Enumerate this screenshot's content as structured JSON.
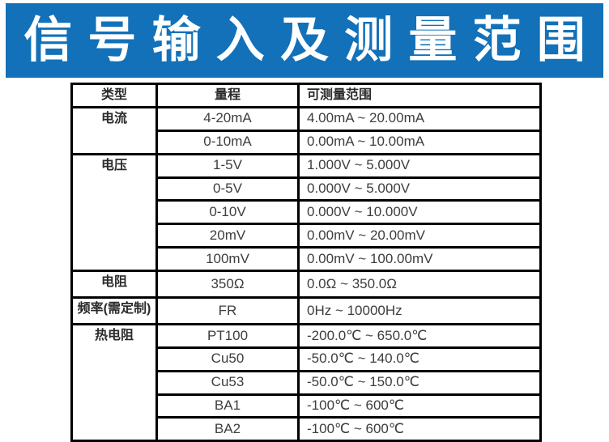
{
  "banner": {
    "title": "信号输入及测量范围"
  },
  "colors": {
    "banner_bg": "#1271b8",
    "banner_text": "#ffffff",
    "table_border": "#000000",
    "table_text": "#3d3d3d"
  },
  "table": {
    "headers": [
      "类型",
      "量程",
      "可测量范围"
    ],
    "rows": [
      {
        "type": "电流",
        "type_rowspan": 2,
        "range": "4-20mA",
        "measurable": "4.00mA ~ 20.00mA"
      },
      {
        "range": "0-10mA",
        "measurable": "0.00mA ~ 10.00mA"
      },
      {
        "type": "电压",
        "type_rowspan": 5,
        "range": "1-5V",
        "measurable": "1.000V ~ 5.000V"
      },
      {
        "range": "0-5V",
        "measurable": "0.000V ~ 5.000V"
      },
      {
        "range": "0-10V",
        "measurable": "0.000V ~ 10.000V"
      },
      {
        "range": "20mV",
        "measurable": "0.00mV ~ 20.00mV"
      },
      {
        "range": "100mV",
        "measurable": "0.00mV ~ 100.00mV"
      },
      {
        "type": "电阻",
        "type_rowspan": 1,
        "range": "350Ω",
        "measurable": "0.0Ω ~ 350.0Ω"
      },
      {
        "type": "频率(需定制)",
        "type_rowspan": 1,
        "range": "FR",
        "measurable": "0Hz ~ 10000Hz"
      },
      {
        "type": "热电阻",
        "type_rowspan": 5,
        "range": "PT100",
        "measurable": "-200.0℃ ~ 650.0℃"
      },
      {
        "range": "Cu50",
        "measurable": "-50.0℃ ~ 140.0℃"
      },
      {
        "range": "Cu53",
        "measurable": "-50.0℃ ~ 150.0℃"
      },
      {
        "range": "BA1",
        "measurable": "-100℃ ~ 600℃"
      },
      {
        "range": "BA2",
        "measurable": "-100℃ ~ 600℃"
      }
    ]
  }
}
